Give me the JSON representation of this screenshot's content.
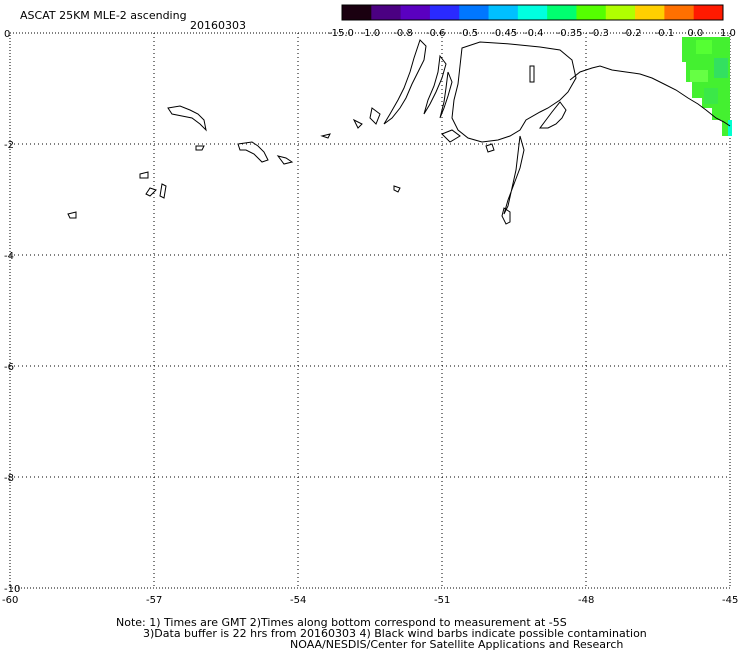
{
  "title": "ASCAT 25KM MLE-2 ascending",
  "date": "20160303",
  "colorbar": {
    "labels": [
      "-15.0",
      "-1.0",
      "-0.8",
      "-0.6",
      "-0.5",
      "-0.45",
      "-0.4",
      "-0.35",
      "-0.3",
      "-0.2",
      "-0.1",
      "0.0",
      "1.0"
    ],
    "colors": [
      "#1a0010",
      "#4b0082",
      "#5a00c0",
      "#2a2aff",
      "#0077ff",
      "#00c0ff",
      "#00ffe0",
      "#00ff70",
      "#55ff00",
      "#b0ff00",
      "#ffd000",
      "#ff7000",
      "#ff1a00"
    ]
  },
  "axes": {
    "y_ticks": [
      "0",
      "-2",
      "-4",
      "-6",
      "-8",
      "-10"
    ],
    "x_ticks": [
      "-60",
      "-57",
      "-54",
      "-51",
      "-48",
      "-45"
    ]
  },
  "footer": {
    "line1": "Note: 1) Times are GMT 2)Times along bottom correspond to measurement at -5S",
    "line2": "3)Data buffer is 22 hrs from 20160303 4) Black wind barbs indicate possible contamination",
    "line3": "NOAA/NESDIS/Center for Satellite Applications and Research"
  }
}
